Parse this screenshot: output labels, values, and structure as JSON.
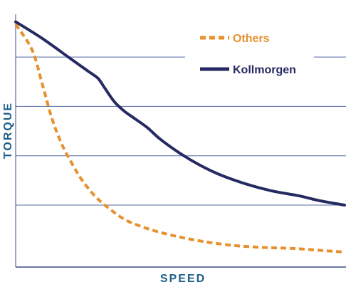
{
  "chart_data": {
    "type": "line",
    "xlabel": "SPEED",
    "ylabel": "TORQUE",
    "xlim": [
      0,
      100
    ],
    "ylim": [
      0,
      100
    ],
    "grid": "horizontal",
    "grid_values": [
      20,
      41,
      62,
      83
    ],
    "legend_placement": "top-right",
    "series": [
      {
        "name": "Others",
        "color": "#e6912e",
        "style": "dashed",
        "x": [
          0,
          5,
          8,
          11,
          14,
          17,
          20,
          24,
          28,
          33,
          38,
          45,
          55,
          65,
          75,
          85,
          95,
          100
        ],
        "y": [
          97,
          86,
          72,
          57,
          46,
          38,
          31,
          24,
          19,
          14,
          11,
          8,
          5,
          3,
          2,
          1.5,
          0.5,
          0
        ]
      },
      {
        "name": "Kollmorgen",
        "color": "#262a63",
        "style": "solid",
        "x": [
          0,
          8,
          16,
          22,
          25,
          27,
          30,
          33,
          36,
          40,
          44,
          50,
          56,
          62,
          70,
          78,
          86,
          92,
          100
        ],
        "y": [
          98,
          91,
          83,
          77,
          74,
          70,
          64,
          60,
          57,
          53,
          48,
          42,
          37,
          33,
          29,
          26,
          24,
          22,
          20
        ]
      }
    ]
  }
}
